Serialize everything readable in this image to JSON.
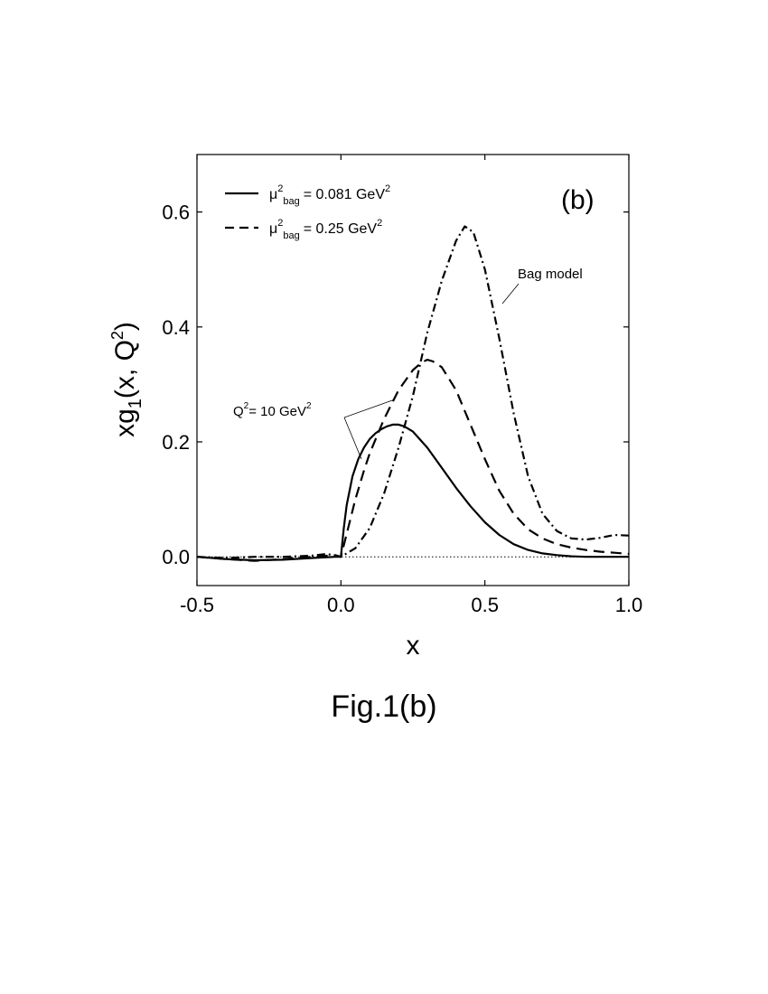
{
  "caption": "Fig.1(b)",
  "chart_data": {
    "type": "line",
    "panel_label": "(b)",
    "xlabel": "x",
    "ylabel": {
      "base": "xg",
      "sub": "1",
      "mid": "(x, Q",
      "sup": "2",
      "end": ")"
    },
    "xlim": [
      -0.5,
      1.0
    ],
    "ylim": [
      -0.05,
      0.7
    ],
    "x_ticks": [
      -0.5,
      0.0,
      0.5,
      1.0
    ],
    "x_tick_labels": [
      "-0.5",
      "0.0",
      "0.5",
      "1.0"
    ],
    "y_ticks": [
      0.0,
      0.2,
      0.4,
      0.6
    ],
    "y_tick_labels": [
      "0.0",
      "0.2",
      "0.4",
      "0.6"
    ],
    "zero_line": true,
    "legend_position": "top-left",
    "legend": [
      {
        "style": "solid",
        "mu": "μ",
        "mu_sup": "2",
        "sub": "bag",
        "text": "= 0.081  GeV",
        "sup": "2"
      },
      {
        "style": "dashed",
        "mu": "μ",
        "mu_sup": "2",
        "sub": "bag",
        "text": "=  0.25   GeV",
        "sup": "2"
      }
    ],
    "annotations": [
      {
        "id": "bag-model",
        "text": "Bag  model"
      },
      {
        "id": "q2",
        "text": "Q",
        "sup": "2",
        "text2": "= 10 GeV",
        "sup2": "2"
      }
    ],
    "series": [
      {
        "style": "solid",
        "x": [
          -0.5,
          -0.4,
          -0.3,
          -0.2,
          -0.1,
          -0.02,
          0.0,
          0.01,
          0.02,
          0.04,
          0.06,
          0.08,
          0.1,
          0.12,
          0.14,
          0.16,
          0.18,
          0.2,
          0.22,
          0.25,
          0.3,
          0.35,
          0.4,
          0.45,
          0.5,
          0.55,
          0.6,
          0.65,
          0.7,
          0.75,
          0.8,
          0.85,
          0.9,
          0.95,
          1.0
        ],
        "y": [
          0.0,
          -0.004,
          -0.006,
          -0.005,
          -0.002,
          0.0,
          0.0,
          0.05,
          0.09,
          0.14,
          0.17,
          0.19,
          0.205,
          0.215,
          0.222,
          0.227,
          0.23,
          0.23,
          0.227,
          0.218,
          0.19,
          0.155,
          0.12,
          0.088,
          0.06,
          0.038,
          0.022,
          0.012,
          0.006,
          0.003,
          0.001,
          0.0,
          0.0,
          0.0,
          0.0
        ]
      },
      {
        "style": "dashed",
        "x": [
          -0.5,
          -0.4,
          -0.3,
          -0.2,
          -0.1,
          -0.02,
          0.0,
          0.02,
          0.05,
          0.08,
          0.1,
          0.15,
          0.2,
          0.25,
          0.28,
          0.3,
          0.32,
          0.35,
          0.4,
          0.45,
          0.5,
          0.55,
          0.6,
          0.65,
          0.7,
          0.75,
          0.8,
          0.85,
          0.9,
          0.95,
          1.0
        ],
        "y": [
          0.0,
          -0.004,
          -0.007,
          -0.004,
          0.0,
          0.003,
          0.0,
          0.04,
          0.1,
          0.15,
          0.18,
          0.24,
          0.29,
          0.325,
          0.338,
          0.343,
          0.34,
          0.33,
          0.29,
          0.23,
          0.17,
          0.115,
          0.075,
          0.048,
          0.032,
          0.022,
          0.016,
          0.012,
          0.009,
          0.007,
          0.005
        ]
      },
      {
        "style": "dashdot",
        "x": [
          -0.5,
          -0.4,
          -0.3,
          -0.2,
          -0.1,
          -0.05,
          0.0,
          0.05,
          0.1,
          0.15,
          0.2,
          0.25,
          0.3,
          0.35,
          0.4,
          0.43,
          0.46,
          0.5,
          0.55,
          0.6,
          0.65,
          0.7,
          0.75,
          0.8,
          0.85,
          0.9,
          0.95,
          1.0
        ],
        "y": [
          0.0,
          -0.002,
          0.0,
          0.0,
          0.002,
          0.005,
          0.0,
          0.015,
          0.05,
          0.11,
          0.19,
          0.28,
          0.39,
          0.48,
          0.55,
          0.575,
          0.565,
          0.5,
          0.38,
          0.25,
          0.14,
          0.075,
          0.045,
          0.032,
          0.03,
          0.033,
          0.038,
          0.037
        ]
      }
    ]
  }
}
